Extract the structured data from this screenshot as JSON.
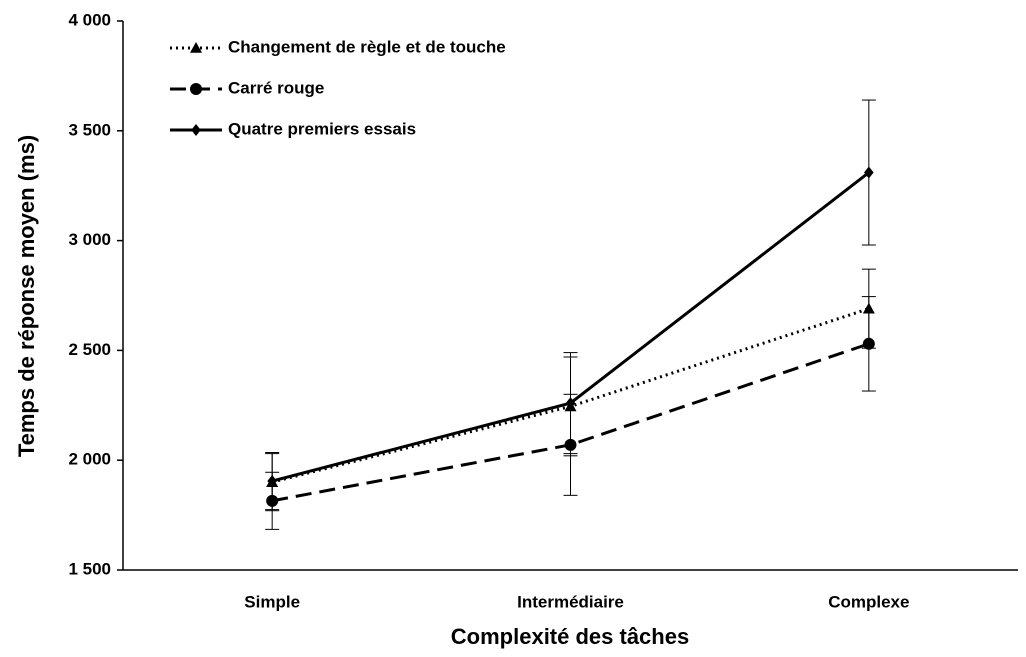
{
  "chart_data": {
    "type": "line",
    "xlabel": "Complexité des tâches",
    "ylabel": "Temps de réponse moyen (ms)",
    "categories": [
      "Simple",
      "Intermédiaire",
      "Complexe"
    ],
    "series": [
      {
        "name": "Changement de règle et de touche",
        "color": "#000000",
        "dash": "dotted",
        "marker": "triangle",
        "values": [
          1900,
          2245,
          2690
        ],
        "errors": [
          130,
          225,
          180
        ]
      },
      {
        "name": "Carré rouge",
        "color": "#000000",
        "dash": "dashed",
        "marker": "circle",
        "values": [
          1815,
          2070,
          2530
        ],
        "errors": [
          130,
          230,
          215
        ]
      },
      {
        "name": "Quatre premiers essais",
        "color": "#000000",
        "dash": "solid",
        "marker": "diamond",
        "values": [
          1905,
          2260,
          3310
        ],
        "errors": [
          130,
          230,
          330
        ]
      }
    ],
    "ylim": [
      1500,
      4000
    ],
    "yticks": [
      {
        "value": 1500,
        "label": "1 500"
      },
      {
        "value": 2000,
        "label": "2 000"
      },
      {
        "value": 2500,
        "label": "2 500"
      },
      {
        "value": 3000,
        "label": "3 000"
      },
      {
        "value": 3500,
        "label": "3 500"
      },
      {
        "value": 4000,
        "label": "4 000"
      }
    ],
    "grid": false,
    "legend": "top-left"
  }
}
